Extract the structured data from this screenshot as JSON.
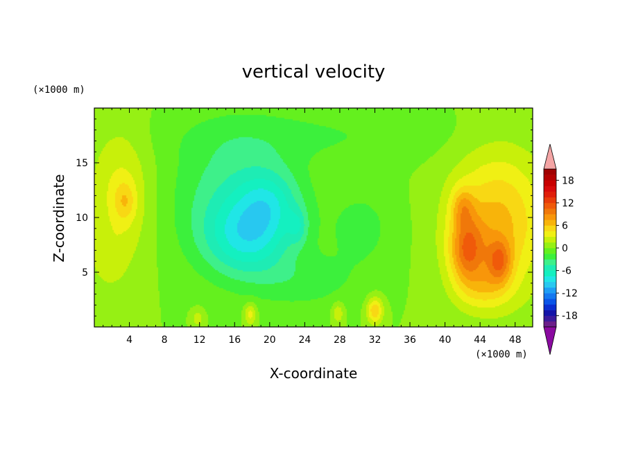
{
  "chart_data": {
    "type": "heatmap",
    "title": "vertical velocity",
    "xlabel": "X-coordinate",
    "ylabel": "Z-coordinate",
    "x_unit": "(×1000 m)",
    "y_unit": "(×1000 m)",
    "xlim": [
      0,
      50
    ],
    "ylim": [
      0,
      20
    ],
    "xticks": [
      "4",
      "8",
      "12",
      "16",
      "20",
      "24",
      "28",
      "32",
      "36",
      "40",
      "44",
      "48"
    ],
    "yticks": [
      "5",
      "10",
      "15"
    ],
    "colorbar": {
      "labels": [
        "18",
        "12",
        "6",
        "0",
        "-6",
        "-12",
        "-18"
      ],
      "levels": [
        -21,
        -19.5,
        -18,
        -16.5,
        -15,
        -13.5,
        -12,
        -10.5,
        -9,
        -7.5,
        -6,
        -4.5,
        -3,
        -1.5,
        0,
        1.5,
        3,
        4.5,
        6,
        7.5,
        9,
        10.5,
        12,
        13.5,
        15,
        16.5,
        18,
        19.5,
        21
      ],
      "colors": [
        "#6c1e8a",
        "#3b1a9c",
        "#1414a8",
        "#0a2ed0",
        "#0a55e8",
        "#1478f0",
        "#1e9ef5",
        "#28c8f0",
        "#20e6e6",
        "#14f0c0",
        "#1eecb4",
        "#3ef08a",
        "#3cf03c",
        "#64f01e",
        "#96f014",
        "#c8f00a",
        "#f0f014",
        "#f8d814",
        "#f8b40a",
        "#f8960a",
        "#f0780a",
        "#f05a0a",
        "#e83c0a",
        "#e01e0a",
        "#d80a0a",
        "#c80000",
        "#b40000",
        "#a00000"
      ],
      "over_color": "#f4a5a5",
      "under_color": "#8a0aa0"
    },
    "features": [
      {
        "x": 46,
        "z": 9.5,
        "sx": 5.5,
        "sz": 6.5,
        "amp": 6.5
      },
      {
        "x": 42.5,
        "z": 7.0,
        "sx": 2.0,
        "sz": 3.0,
        "amp": 7.5
      },
      {
        "x": 46.2,
        "z": 6.0,
        "sx": 1.4,
        "sz": 2.0,
        "amp": 6.0
      },
      {
        "x": 42.0,
        "z": 11.0,
        "sx": 1.3,
        "sz": 1.8,
        "amp": 4.0
      },
      {
        "x": 44.5,
        "z": 3.5,
        "sx": 3.0,
        "sz": 2.0,
        "amp": 3.0
      },
      {
        "x": 3,
        "z": 12,
        "sx": 3.5,
        "sz": 6.5,
        "amp": 3.5
      },
      {
        "x": 3.5,
        "z": 11.5,
        "sx": 1.2,
        "sz": 1.8,
        "amp": 3.0
      },
      {
        "x": 1.5,
        "z": 6.0,
        "sx": 2.0,
        "sz": 2.5,
        "amp": 1.5
      },
      {
        "x": 17.5,
        "z": 8.0,
        "sx": 5.0,
        "sz": 3.5,
        "amp": -6.0
      },
      {
        "x": 20.0,
        "z": 11.5,
        "sx": 3.5,
        "sz": 3.0,
        "amp": -4.0
      },
      {
        "x": 23.2,
        "z": 9.2,
        "sx": 1.1,
        "sz": 1.6,
        "amp": -3.0
      },
      {
        "x": 16.0,
        "z": 12.0,
        "sx": 7.0,
        "sz": 6.0,
        "amp": -4.0
      },
      {
        "x": 24.0,
        "z": 4.0,
        "sx": 6.0,
        "sz": 2.5,
        "amp": -2.0
      },
      {
        "x": 30.5,
        "z": 9.0,
        "sx": 4.0,
        "sz": 4.0,
        "amp": -2.0
      },
      {
        "x": 32.0,
        "z": 1.5,
        "sx": 0.9,
        "sz": 1.2,
        "amp": 6.0
      },
      {
        "x": 17.8,
        "z": 1.2,
        "sx": 0.7,
        "sz": 1.0,
        "amp": 4.0
      },
      {
        "x": 27.8,
        "z": 1.3,
        "sx": 0.7,
        "sz": 1.0,
        "amp": 3.0
      },
      {
        "x": 11.8,
        "z": 0.8,
        "sx": 0.7,
        "sz": 0.8,
        "amp": 2.5
      },
      {
        "x": 25.0,
        "z": 17.5,
        "sx": 16.0,
        "sz": 2.5,
        "amp": -1.5
      }
    ]
  }
}
